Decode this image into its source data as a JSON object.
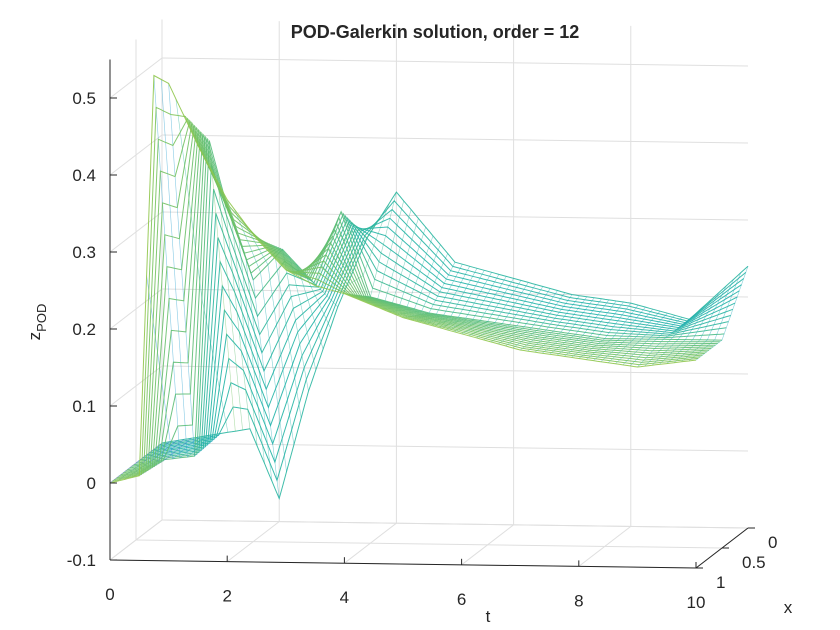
{
  "chart_data": {
    "type": "surface",
    "title": "POD-Galerkin solution, order = 12",
    "xlabel": "t",
    "ylabel": "x",
    "zlabel": "z",
    "zlabel_sub": "POD",
    "t_ticks": [
      "0",
      "2",
      "4",
      "6",
      "8",
      "10"
    ],
    "x_ticks": [
      "0",
      "0.5",
      "1"
    ],
    "z_ticks": [
      "-0.1",
      "0",
      "0.1",
      "0.2",
      "0.3",
      "0.4",
      "0.5"
    ],
    "xlim": [
      0,
      10
    ],
    "ylim": [
      0,
      1
    ],
    "zlim": [
      -0.1,
      0.55
    ],
    "grid": true,
    "colormap": "parula",
    "colors": {
      "low": "#3e26a8",
      "mid_low": "#2f8cf5",
      "mid": "#20b4aa",
      "mid_high": "#9fc93e",
      "high": "#f6d52e"
    },
    "series": [
      {
        "x": 0,
        "t": [
          0,
          0.5,
          0.75,
          1,
          1.5,
          2,
          2.5,
          3,
          3.5,
          4,
          5,
          6,
          7,
          8,
          9,
          10
        ],
        "z": [
          0,
          0.01,
          0.53,
          0.52,
          0.44,
          0.37,
          0.32,
          0.28,
          0.26,
          0.25,
          0.22,
          0.2,
          0.18,
          0.17,
          0.16,
          0.17
        ]
      },
      {
        "x": 0.5,
        "t": [
          0,
          1,
          1.25,
          1.5,
          2,
          2.5,
          3,
          3.5,
          4,
          5,
          6,
          7,
          8,
          9,
          10
        ],
        "z": [
          0,
          0.01,
          0.42,
          0.35,
          0.24,
          0.28,
          0.24,
          0.33,
          0.22,
          0.2,
          0.19,
          0.18,
          0.17,
          0.17,
          0.17
        ]
      },
      {
        "x": 1,
        "t": [
          0,
          1.5,
          2,
          2.5,
          3,
          3.5,
          4,
          5,
          6,
          7,
          8,
          9,
          10
        ],
        "z": [
          0,
          0.02,
          -0.07,
          0.07,
          0.18,
          0.27,
          0.33,
          0.24,
          0.22,
          0.2,
          0.19,
          0.17,
          0.24
        ]
      }
    ]
  }
}
